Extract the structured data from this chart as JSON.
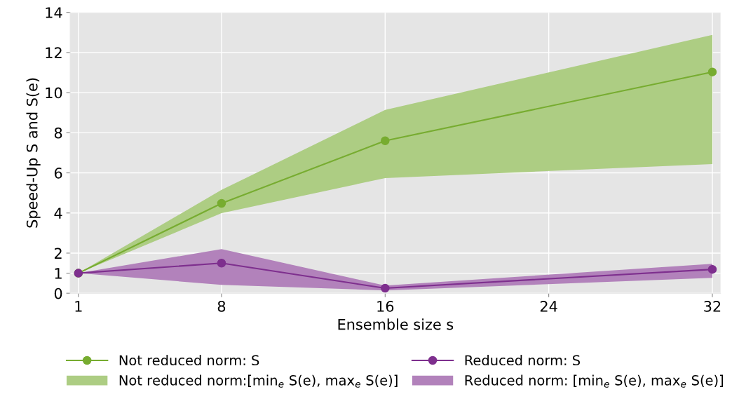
{
  "chart_data": {
    "type": "line",
    "xlabel": "Ensemble size s",
    "ylabel": "Speed-Up S and S(e)",
    "x": [
      1,
      8,
      16,
      32
    ],
    "series": [
      {
        "name": "Not reduced norm: S",
        "color": "#77ac30",
        "values": [
          1.0,
          4.48,
          7.6,
          11.03
        ],
        "lower": [
          1.0,
          3.99,
          5.74,
          6.44
        ],
        "upper": [
          1.0,
          5.15,
          9.14,
          12.88
        ]
      },
      {
        "name": "Reduced norm: S",
        "color": "#7e2f8e",
        "values": [
          1.0,
          1.5,
          0.25,
          1.19
        ],
        "lower": [
          1.0,
          0.42,
          0.14,
          0.77
        ],
        "upper": [
          1.0,
          2.2,
          0.38,
          1.47
        ]
      }
    ],
    "annotations": [
      "Not reduced norm:[min$_{e}$ S(e), max$_{e}$ S(e)]",
      "Reduced norm: [min$_{e}$ S(e), max$_{e}$ S(e)]"
    ],
    "xlim": [
      0.6,
      32.4
    ],
    "xticks": [
      1,
      8,
      16,
      24,
      32
    ],
    "ylim": [
      0,
      14
    ],
    "yticks": [
      0,
      1,
      2,
      4,
      6,
      8,
      10,
      12,
      14
    ],
    "grid": true,
    "legend": "bottom",
    "marker": "circle",
    "line_style": "solid"
  }
}
